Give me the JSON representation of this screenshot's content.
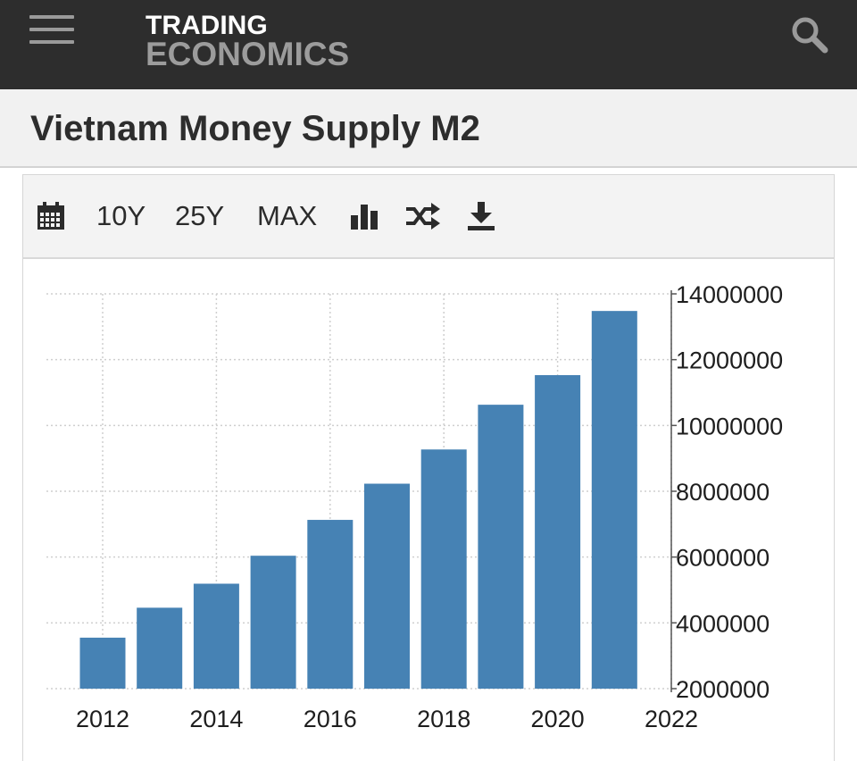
{
  "header": {
    "logo_line1": "TRADING",
    "logo_line2": "ECONOMICS",
    "menu_icon": "hamburger-menu-icon",
    "search_icon": "search-icon"
  },
  "page": {
    "title": "Vietnam Money Supply M2"
  },
  "toolbar": {
    "calendar_icon": "calendar-icon",
    "range_10y": "10Y",
    "range_25y": "25Y",
    "range_max": "MAX",
    "chart_type_icon": "bar-chart-icon",
    "compare_icon": "shuffle-icon",
    "download_icon": "download-icon"
  },
  "colors": {
    "bar": "#4682b4",
    "header_bg": "#2d2d2d",
    "title_bg": "#f1f1f1"
  },
  "chart_data": {
    "type": "bar",
    "categories": [
      "2012",
      "2013",
      "2014",
      "2015",
      "2016",
      "2017",
      "2018",
      "2019",
      "2020",
      "2021"
    ],
    "values": [
      3550000,
      4460000,
      5190000,
      6040000,
      7130000,
      8230000,
      9270000,
      10630000,
      11530000,
      13480000
    ],
    "x_ticks": [
      "2012",
      "2014",
      "2016",
      "2018",
      "2020",
      "2022"
    ],
    "y_ticks": [
      "2000000",
      "4000000",
      "6000000",
      "8000000",
      "10000000",
      "12000000",
      "14000000"
    ],
    "ylim": [
      2000000,
      14000000
    ],
    "grid": true,
    "y_axis_position": "right",
    "title": "",
    "xlabel": "",
    "ylabel": ""
  }
}
